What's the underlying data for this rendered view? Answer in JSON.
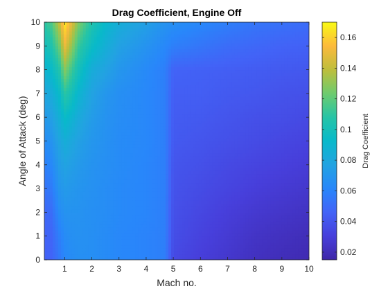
{
  "chart_data": {
    "type": "heatmap",
    "style": "filled-contour",
    "title": "Drag Coefficient, Engine Off",
    "xlabel": "Mach no.",
    "ylabel": "Angle of Attack (deg)",
    "xlim": [
      0.25,
      10
    ],
    "ylim": [
      0,
      10
    ],
    "xticks": [
      1,
      2,
      3,
      4,
      5,
      6,
      7,
      8,
      9,
      10
    ],
    "yticks": [
      0,
      1,
      2,
      3,
      4,
      5,
      6,
      7,
      8,
      9,
      10
    ],
    "colorbar": {
      "label": "Drag Coefficient",
      "range": [
        0.015,
        0.17
      ],
      "ticks": [
        0.02,
        0.04,
        0.06,
        0.08,
        0.1,
        0.12,
        0.14,
        0.16
      ],
      "colormap": "parula"
    },
    "x": [
      0.25,
      0.5,
      0.8,
      1.0,
      1.2,
      1.5,
      2.0,
      2.5,
      3.0,
      4.0,
      4.7,
      5.0,
      6.0,
      7.0,
      8.0,
      9.0,
      10.0
    ],
    "y": [
      0,
      1,
      2,
      3,
      4,
      5,
      6,
      7,
      8,
      9,
      10
    ],
    "z": [
      [
        0.045,
        0.046,
        0.055,
        0.062,
        0.064,
        0.066,
        0.066,
        0.064,
        0.062,
        0.06,
        0.058,
        0.035,
        0.03,
        0.026,
        0.022,
        0.02,
        0.018
      ],
      [
        0.046,
        0.047,
        0.058,
        0.064,
        0.066,
        0.067,
        0.066,
        0.064,
        0.062,
        0.06,
        0.058,
        0.037,
        0.032,
        0.028,
        0.024,
        0.022,
        0.02
      ],
      [
        0.048,
        0.05,
        0.064,
        0.068,
        0.068,
        0.068,
        0.066,
        0.065,
        0.063,
        0.061,
        0.058,
        0.038,
        0.034,
        0.03,
        0.027,
        0.025,
        0.023
      ],
      [
        0.053,
        0.056,
        0.069,
        0.072,
        0.071,
        0.069,
        0.067,
        0.065,
        0.063,
        0.061,
        0.058,
        0.039,
        0.036,
        0.033,
        0.03,
        0.028,
        0.026
      ],
      [
        0.058,
        0.062,
        0.073,
        0.077,
        0.075,
        0.072,
        0.068,
        0.066,
        0.064,
        0.061,
        0.058,
        0.04,
        0.038,
        0.035,
        0.033,
        0.031,
        0.029
      ],
      [
        0.064,
        0.068,
        0.078,
        0.084,
        0.081,
        0.076,
        0.07,
        0.067,
        0.064,
        0.062,
        0.058,
        0.042,
        0.04,
        0.038,
        0.036,
        0.034,
        0.032
      ],
      [
        0.071,
        0.075,
        0.085,
        0.094,
        0.09,
        0.082,
        0.073,
        0.068,
        0.065,
        0.062,
        0.058,
        0.043,
        0.042,
        0.04,
        0.038,
        0.037,
        0.035
      ],
      [
        0.079,
        0.083,
        0.093,
        0.108,
        0.102,
        0.09,
        0.077,
        0.07,
        0.066,
        0.062,
        0.058,
        0.044,
        0.044,
        0.042,
        0.041,
        0.039,
        0.038
      ],
      [
        0.088,
        0.093,
        0.105,
        0.128,
        0.116,
        0.1,
        0.083,
        0.077,
        0.07,
        0.063,
        0.058,
        0.046,
        0.045,
        0.044,
        0.043,
        0.042,
        0.041
      ],
      [
        0.098,
        0.104,
        0.122,
        0.15,
        0.135,
        0.112,
        0.095,
        0.085,
        0.076,
        0.068,
        0.062,
        0.058,
        0.054,
        0.05,
        0.048,
        0.046,
        0.045
      ],
      [
        0.108,
        0.116,
        0.14,
        0.166,
        0.152,
        0.127,
        0.105,
        0.092,
        0.084,
        0.075,
        0.068,
        0.066,
        0.062,
        0.058,
        0.054,
        0.052,
        0.05
      ]
    ]
  }
}
